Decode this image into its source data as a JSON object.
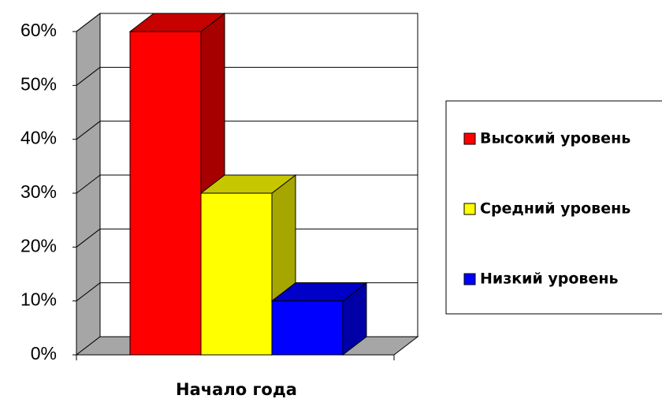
{
  "chart_data": {
    "type": "bar3d",
    "categories": [
      "Начало года"
    ],
    "series": [
      {
        "name": "Высокий уровень",
        "color": "#ff0000",
        "values": [
          60
        ]
      },
      {
        "name": "Средний уровень",
        "color": "#ffff00",
        "values": [
          30
        ]
      },
      {
        "name": "Низкий уровень",
        "color": "#0000ff",
        "values": [
          10
        ]
      }
    ],
    "ylim": [
      0,
      60
    ],
    "yticks": [
      {
        "value": 0,
        "label": "0%"
      },
      {
        "value": 10,
        "label": "10%"
      },
      {
        "value": 20,
        "label": "20%"
      },
      {
        "value": 30,
        "label": "30%"
      },
      {
        "value": 40,
        "label": "40%"
      },
      {
        "value": 50,
        "label": "50%"
      },
      {
        "value": 60,
        "label": "60%"
      }
    ],
    "grid": true,
    "legend": "right"
  }
}
